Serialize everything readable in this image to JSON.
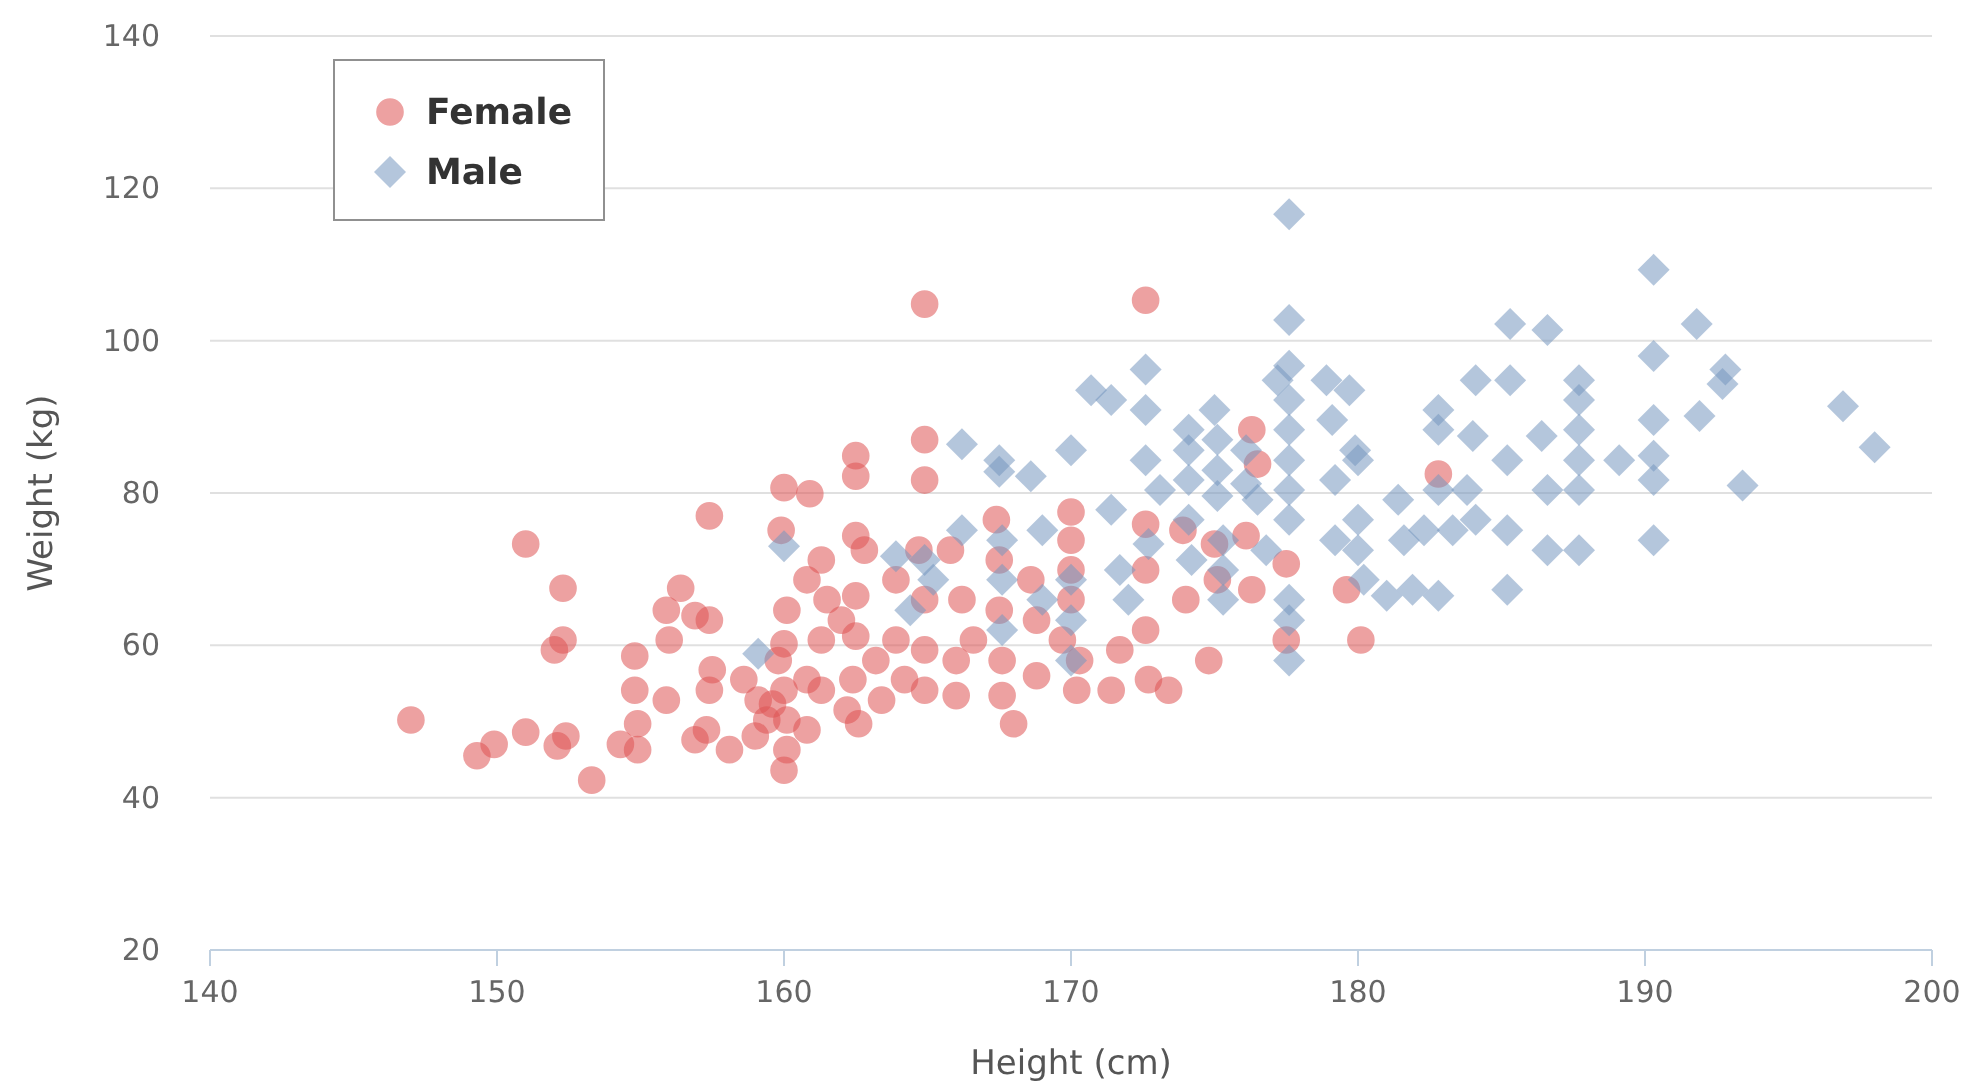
{
  "chart_data": {
    "type": "scatter",
    "xlabel": "Height (cm)",
    "ylabel": "Weight (kg)",
    "xlim": [
      140,
      200
    ],
    "ylim": [
      20,
      140
    ],
    "xticks": [
      140,
      150,
      160,
      170,
      180,
      190,
      200
    ],
    "yticks": [
      20,
      40,
      60,
      80,
      100,
      120,
      140
    ],
    "grid": "y",
    "legend": "top left",
    "series": [
      {
        "name": "Female",
        "color": "#df5353",
        "marker": "circle",
        "x": [
          147.0,
          149.3,
          149.9,
          151.0,
          151.0,
          152.0,
          152.3,
          152.3,
          152.1,
          152.4,
          153.3,
          154.3,
          154.9,
          154.9,
          154.8,
          154.8,
          155.9,
          156.0,
          155.9,
          156.4,
          156.9,
          156.9,
          157.4,
          157.4,
          157.5,
          157.4,
          157.3,
          158.1,
          158.6,
          159.1,
          159.0,
          159.4,
          159.6,
          159.8,
          159.9,
          160.0,
          160.0,
          160.1,
          160.1,
          160.0,
          160.0,
          160.1,
          160.8,
          160.9,
          160.8,
          160.8,
          161.3,
          161.3,
          161.3,
          161.5,
          162.0,
          162.2,
          162.5,
          162.5,
          162.5,
          162.5,
          162.5,
          162.4,
          162.6,
          162.8,
          163.2,
          163.4,
          163.9,
          163.9,
          164.2,
          164.7,
          164.9,
          164.9,
          164.9,
          164.9,
          164.9,
          164.9,
          165.8,
          166.0,
          166.0,
          166.2,
          166.6,
          167.4,
          167.5,
          167.5,
          167.6,
          167.6,
          168.0,
          168.6,
          168.8,
          168.8,
          169.7,
          170.0,
          170.0,
          170.0,
          170.0,
          170.2,
          170.3,
          171.4,
          171.7,
          172.6,
          172.6,
          172.6,
          172.6,
          172.7,
          173.4,
          173.9,
          174.0,
          174.8,
          175.0,
          175.1,
          176.1,
          176.3,
          176.5,
          176.3,
          177.5,
          177.5,
          179.6,
          180.1,
          182.8
        ],
        "values": [
          50.2,
          45.5,
          47.0,
          73.3,
          48.6,
          59.4,
          60.7,
          67.5,
          46.8,
          48.1,
          42.3,
          47.0,
          49.7,
          46.3,
          54.1,
          58.6,
          64.6,
          60.7,
          52.8,
          67.5,
          63.9,
          47.6,
          77.0,
          63.3,
          56.8,
          54.1,
          48.9,
          46.3,
          55.5,
          52.8,
          48.1,
          50.2,
          52.3,
          58.0,
          75.1,
          80.7,
          43.6,
          46.3,
          50.2,
          54.1,
          60.2,
          64.6,
          68.6,
          79.9,
          48.9,
          55.5,
          71.2,
          60.7,
          54.1,
          66.0,
          63.3,
          51.5,
          82.2,
          84.9,
          74.4,
          66.5,
          61.2,
          55.5,
          49.7,
          72.5,
          58.0,
          52.8,
          68.6,
          60.7,
          55.5,
          72.5,
          104.8,
          81.7,
          87.0,
          66.0,
          59.4,
          54.1,
          72.5,
          58.0,
          53.4,
          66.0,
          60.7,
          76.5,
          71.2,
          64.6,
          58.0,
          53.4,
          49.7,
          68.6,
          63.3,
          56.0,
          60.7,
          73.8,
          69.9,
          77.5,
          66.0,
          54.1,
          58.0,
          54.1,
          59.4,
          105.3,
          75.9,
          69.9,
          62.0,
          55.5,
          54.1,
          75.1,
          66.0,
          58.0,
          73.3,
          68.6,
          74.4,
          88.3,
          83.8,
          67.3,
          70.7,
          60.7,
          67.3,
          60.7,
          82.5
        ]
      },
      {
        "name": "Male",
        "color": "#7798bf",
        "marker": "diamond",
        "x": [
          159.1,
          160.0,
          163.9,
          164.4,
          164.9,
          165.2,
          166.2,
          166.2,
          167.5,
          167.5,
          167.6,
          167.6,
          167.6,
          168.6,
          169.0,
          169.0,
          170.0,
          170.0,
          170.0,
          170.0,
          170.7,
          171.4,
          171.4,
          171.7,
          172.0,
          172.6,
          172.6,
          172.6,
          172.7,
          173.1,
          174.1,
          174.1,
          174.1,
          174.1,
          174.2,
          175.0,
          175.1,
          175.1,
          175.1,
          175.3,
          175.3,
          175.3,
          176.1,
          176.1,
          176.5,
          176.8,
          177.2,
          177.6,
          177.6,
          177.6,
          177.6,
          177.6,
          177.6,
          177.6,
          177.6,
          177.6,
          177.6,
          177.6,
          178.9,
          179.1,
          179.2,
          179.2,
          179.7,
          179.9,
          180.0,
          180.0,
          180.0,
          180.2,
          181.0,
          181.4,
          181.6,
          181.9,
          182.3,
          182.8,
          182.8,
          182.8,
          182.8,
          183.3,
          183.8,
          184.0,
          184.1,
          184.1,
          185.2,
          185.2,
          185.2,
          185.3,
          185.3,
          186.4,
          186.6,
          186.6,
          186.6,
          187.7,
          187.7,
          187.7,
          187.7,
          187.7,
          187.7,
          189.1,
          190.3,
          190.3,
          190.3,
          190.3,
          190.3,
          190.3,
          191.8,
          191.9,
          192.7,
          192.8,
          193.4,
          196.9,
          198.0
        ],
        "values": [
          58.9,
          73.0,
          71.7,
          64.6,
          71.2,
          68.6,
          86.4,
          75.1,
          84.3,
          82.8,
          73.8,
          68.6,
          62.0,
          82.2,
          75.1,
          66.0,
          85.6,
          68.6,
          63.3,
          58.0,
          93.5,
          92.2,
          77.8,
          69.9,
          66.0,
          96.2,
          90.9,
          84.3,
          73.3,
          80.4,
          88.3,
          85.6,
          81.7,
          76.5,
          71.2,
          90.9,
          87.0,
          83.0,
          79.6,
          73.8,
          69.9,
          66.0,
          85.6,
          81.2,
          79.1,
          72.5,
          94.8,
          116.6,
          102.7,
          96.7,
          92.2,
          88.3,
          84.3,
          80.4,
          76.5,
          66.0,
          63.3,
          58.0,
          94.8,
          89.6,
          81.7,
          73.8,
          93.5,
          85.6,
          84.3,
          76.5,
          72.5,
          68.6,
          66.5,
          79.1,
          73.8,
          67.3,
          75.1,
          90.9,
          88.3,
          80.4,
          66.5,
          75.1,
          80.4,
          87.5,
          94.8,
          76.5,
          67.3,
          84.3,
          75.1,
          102.2,
          94.8,
          87.5,
          101.4,
          80.4,
          72.5,
          94.8,
          92.2,
          88.3,
          84.3,
          80.4,
          72.5,
          84.3,
          109.3,
          98.0,
          89.6,
          84.9,
          81.7,
          73.8,
          102.2,
          90.1,
          94.3,
          96.2,
          81.0,
          91.4,
          86.0
        ]
      }
    ]
  }
}
